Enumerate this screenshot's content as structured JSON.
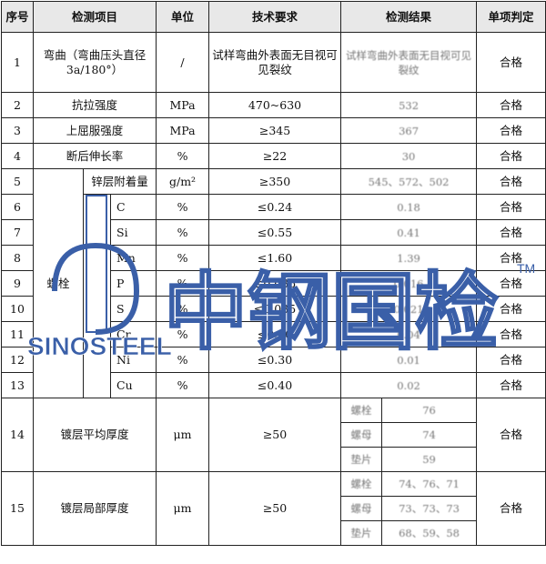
{
  "headers": [
    "序号",
    "检测项目",
    "单位",
    "技术要求",
    "检测结果",
    "单项判定"
  ],
  "rows": [
    {
      "no": "1",
      "item": "弯曲（弯曲压头直径3a/180°）",
      "unit": "/",
      "req": "试样弯曲外表面无目视可见裂纹",
      "result": "试样弯曲外表面无目视可见裂纹",
      "verdict": "合格"
    },
    {
      "no": "2",
      "item": "抗拉强度",
      "unit": "MPa",
      "req": "470~630",
      "result": "532",
      "verdict": "合格"
    },
    {
      "no": "3",
      "item": "上屈服强度",
      "unit": "MPa",
      "req": "≥345",
      "result": "367",
      "verdict": "合格"
    },
    {
      "no": "4",
      "item": "断后伸长率",
      "unit": "%",
      "req": "≥22",
      "result": "30",
      "verdict": "合格"
    },
    {
      "no": "5",
      "item": "锌层附着量",
      "unit": "g/m²",
      "req": "≥350",
      "result": "545、572、502",
      "verdict": "合格"
    },
    {
      "no": "6",
      "item": "C",
      "unit": "%",
      "req": "≤0.24",
      "result": "0.18",
      "verdict": "合格"
    },
    {
      "no": "7",
      "item": "Si",
      "unit": "%",
      "req": "≤0.55",
      "result": "0.41",
      "verdict": "合格"
    },
    {
      "no": "8",
      "item": "Mn",
      "unit": "%",
      "req": "≤1.60",
      "result": "1.39",
      "verdict": "合格"
    },
    {
      "no": "9",
      "item": "P",
      "unit": "%",
      "req": "≤0.035",
      "result": "0.016",
      "verdict": "合格"
    },
    {
      "no": "10",
      "item": "S",
      "unit": "%",
      "req": "≤0.035",
      "result": "0.021",
      "verdict": "合格"
    },
    {
      "no": "11",
      "item": "Cr",
      "unit": "%",
      "req": "≤0.30",
      "result": "0.04",
      "verdict": "合格"
    },
    {
      "no": "12",
      "item": "Ni",
      "unit": "%",
      "req": "≤0.30",
      "result": "0.01",
      "verdict": "合格"
    },
    {
      "no": "13",
      "item": "Cu",
      "unit": "%",
      "req": "≤0.40",
      "result": "0.02",
      "verdict": "合格"
    }
  ],
  "group_label": "螺栓",
  "coat_rows": [
    {
      "no": "14",
      "item": "镀层平均厚度",
      "unit": "μm",
      "req": "≥50",
      "verdict": "合格",
      "parts": [
        {
          "name": "螺栓",
          "value": "76"
        },
        {
          "name": "螺母",
          "value": "74"
        },
        {
          "name": "垫片",
          "value": "59"
        }
      ]
    },
    {
      "no": "15",
      "item": "镀层局部厚度",
      "unit": "μm",
      "req": "≥50",
      "verdict": "合格",
      "parts": [
        {
          "name": "螺栓",
          "value": "74、76、71"
        },
        {
          "name": "螺母",
          "value": "73、73、73"
        },
        {
          "name": "垫片",
          "value": "68、59、58"
        }
      ]
    }
  ],
  "watermark": {
    "text": "中钢国检",
    "brand": "SINOSTEEL",
    "tm": "TM",
    "color": "#3a5fa8"
  }
}
